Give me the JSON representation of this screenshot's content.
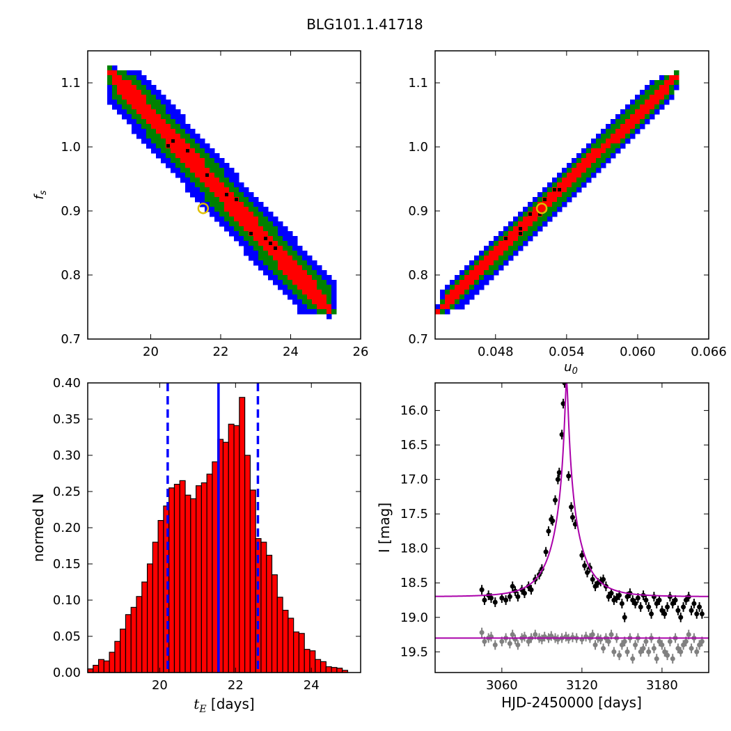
{
  "title": "BLG101.1.41718",
  "panels": {
    "tl": {
      "ylabel": "f_s",
      "yticks": [
        "1.1",
        "1.0",
        "0.9",
        "0.8",
        "0.7"
      ],
      "xticks": [
        "20",
        "22",
        "24",
        "26"
      ]
    },
    "tr": {
      "xlabel": "u_0",
      "yticks": [
        "1.1",
        "1.0",
        "0.9",
        "0.8",
        "0.7"
      ],
      "xticks": [
        "0.048",
        "0.054",
        "0.060",
        "0.066"
      ]
    },
    "bl": {
      "xlabel": "t_E [days]",
      "ylabel": "normed N",
      "yticks": [
        "0.40",
        "0.35",
        "0.30",
        "0.25",
        "0.20",
        "0.15",
        "0.10",
        "0.05",
        "0.00"
      ],
      "xticks": [
        "20",
        "22",
        "24"
      ]
    },
    "br": {
      "xlabel": "HJD-2450000 [days]",
      "ylabel": "I [mag]",
      "yticks": [
        "16.0",
        "16.5",
        "17.0",
        "17.5",
        "18.0",
        "18.5",
        "19.0",
        "19.5"
      ],
      "xticks": [
        "3060",
        "3120",
        "3180"
      ]
    }
  },
  "colors": {
    "level_outer": "#0000ff",
    "level_mid": "#008000",
    "level_inner": "#ff0000",
    "samples": "#000000",
    "best_fit_marker": "#e0c000",
    "hist_bar": "#ff0000",
    "hist_lines": "#0000ff",
    "model": "#aa00aa",
    "data_primary": "#000000",
    "data_secondary": "#808080"
  },
  "chart_data": [
    {
      "type": "heatmap",
      "name": "tE_vs_fs",
      "xlim": [
        18.2,
        26
      ],
      "ylim": [
        0.7,
        1.15
      ],
      "ridge": {
        "x0": 18.8,
        "y0": 1.12,
        "x1": 25.2,
        "y1": 0.74,
        "half_width": [
          0.012,
          0.024,
          0.036
        ]
      },
      "best_fit": {
        "x": 21.5,
        "y": 0.904
      }
    },
    {
      "type": "heatmap",
      "name": "u0_vs_fs",
      "xlim": [
        0.0429,
        0.066
      ],
      "ylim": [
        0.7,
        1.15
      ],
      "ridge": {
        "x0": 0.0431,
        "y0": 0.742,
        "x1": 0.0635,
        "y1": 1.115,
        "half_width": [
          0.008,
          0.015,
          0.022
        ]
      },
      "best_fit": {
        "x": 0.0519,
        "y": 0.904
      }
    },
    {
      "type": "bar",
      "name": "tE_histogram",
      "xlim": [
        18.1,
        25.3
      ],
      "ylim": [
        0,
        0.4
      ],
      "bin_start": 18.1,
      "bin_width": 0.1429,
      "values": [
        0.005,
        0.01,
        0.018,
        0.016,
        0.028,
        0.043,
        0.06,
        0.08,
        0.09,
        0.105,
        0.125,
        0.15,
        0.18,
        0.21,
        0.23,
        0.255,
        0.26,
        0.265,
        0.245,
        0.24,
        0.258,
        0.262,
        0.274,
        0.291,
        0.322,
        0.318,
        0.343,
        0.341,
        0.38,
        0.3,
        0.252,
        0.185,
        0.18,
        0.162,
        0.135,
        0.104,
        0.086,
        0.075,
        0.056,
        0.054,
        0.032,
        0.03,
        0.018,
        0.015,
        0.008,
        0.007,
        0.006,
        0.003
      ],
      "median": 21.55,
      "ci_low": 20.21,
      "ci_high": 22.59
    },
    {
      "type": "scatter",
      "name": "light_curve",
      "xlim": [
        3010,
        3215
      ],
      "ylim": [
        19.8,
        15.6
      ],
      "model_primary": {
        "baseline": 18.7,
        "t0": 3108.5,
        "u0": 0.052,
        "tE": 21.55,
        "fs": 0.904
      },
      "model_secondary": {
        "baseline": 19.3
      },
      "points_primary": [
        [
          3045,
          18.6
        ],
        [
          3047,
          18.75
        ],
        [
          3050,
          18.68
        ],
        [
          3052,
          18.72
        ],
        [
          3055,
          18.78
        ],
        [
          3060,
          18.72
        ],
        [
          3063,
          18.75
        ],
        [
          3066,
          18.7
        ],
        [
          3068,
          18.55
        ],
        [
          3070,
          18.62
        ],
        [
          3072,
          18.7
        ],
        [
          3075,
          18.6
        ],
        [
          3077,
          18.65
        ],
        [
          3080,
          18.55
        ],
        [
          3082,
          18.6
        ],
        [
          3085,
          18.45
        ],
        [
          3088,
          18.38
        ],
        [
          3090,
          18.3
        ],
        [
          3093,
          18.05
        ],
        [
          3095,
          17.75
        ],
        [
          3097,
          17.58
        ],
        [
          3098,
          17.6
        ],
        [
          3100,
          17.3
        ],
        [
          3102,
          17.0
        ],
        [
          3103,
          16.9
        ],
        [
          3105,
          16.35
        ],
        [
          3106,
          15.9
        ],
        [
          3107,
          15.6
        ],
        [
          3110,
          16.95
        ],
        [
          3112,
          17.4
        ],
        [
          3113,
          17.55
        ],
        [
          3115,
          17.65
        ],
        [
          3120,
          18.1
        ],
        [
          3122,
          18.25
        ],
        [
          3124,
          18.35
        ],
        [
          3126,
          18.28
        ],
        [
          3128,
          18.45
        ],
        [
          3130,
          18.55
        ],
        [
          3132,
          18.5
        ],
        [
          3134,
          18.48
        ],
        [
          3136,
          18.45
        ],
        [
          3138,
          18.55
        ],
        [
          3140,
          18.7
        ],
        [
          3142,
          18.65
        ],
        [
          3144,
          18.75
        ],
        [
          3146,
          18.72
        ],
        [
          3148,
          18.68
        ],
        [
          3150,
          18.8
        ],
        [
          3152,
          19.0
        ],
        [
          3154,
          18.7
        ],
        [
          3156,
          18.65
        ],
        [
          3158,
          18.75
        ],
        [
          3160,
          18.8
        ],
        [
          3162,
          18.72
        ],
        [
          3164,
          18.85
        ],
        [
          3166,
          18.68
        ],
        [
          3168,
          18.75
        ],
        [
          3170,
          18.85
        ],
        [
          3172,
          18.95
        ],
        [
          3174,
          18.7
        ],
        [
          3176,
          18.8
        ],
        [
          3178,
          18.75
        ],
        [
          3180,
          18.9
        ],
        [
          3182,
          18.95
        ],
        [
          3184,
          18.85
        ],
        [
          3186,
          18.7
        ],
        [
          3188,
          18.8
        ],
        [
          3190,
          18.75
        ],
        [
          3192,
          18.9
        ],
        [
          3194,
          19.0
        ],
        [
          3196,
          18.85
        ],
        [
          3198,
          18.75
        ],
        [
          3200,
          18.7
        ],
        [
          3202,
          18.9
        ],
        [
          3204,
          18.8
        ],
        [
          3206,
          18.95
        ],
        [
          3208,
          18.85
        ],
        [
          3210,
          18.95
        ]
      ],
      "points_secondary": [
        [
          3045,
          19.22
        ],
        [
          3047,
          19.35
        ],
        [
          3050,
          19.3
        ],
        [
          3052,
          19.28
        ],
        [
          3055,
          19.4
        ],
        [
          3060,
          19.35
        ],
        [
          3063,
          19.3
        ],
        [
          3066,
          19.38
        ],
        [
          3068,
          19.25
        ],
        [
          3070,
          19.32
        ],
        [
          3072,
          19.4
        ],
        [
          3075,
          19.3
        ],
        [
          3077,
          19.28
        ],
        [
          3080,
          19.35
        ],
        [
          3082,
          19.3
        ],
        [
          3085,
          19.25
        ],
        [
          3088,
          19.3
        ],
        [
          3090,
          19.32
        ],
        [
          3092,
          19.28
        ],
        [
          3095,
          19.3
        ],
        [
          3097,
          19.27
        ],
        [
          3100,
          19.3
        ],
        [
          3102,
          19.32
        ],
        [
          3105,
          19.3
        ],
        [
          3108,
          19.28
        ],
        [
          3110,
          19.31
        ],
        [
          3113,
          19.29
        ],
        [
          3116,
          19.3
        ],
        [
          3120,
          19.32
        ],
        [
          3123,
          19.28
        ],
        [
          3126,
          19.3
        ],
        [
          3128,
          19.25
        ],
        [
          3130,
          19.4
        ],
        [
          3132,
          19.3
        ],
        [
          3134,
          19.32
        ],
        [
          3136,
          19.45
        ],
        [
          3138,
          19.3
        ],
        [
          3140,
          19.35
        ],
        [
          3142,
          19.25
        ],
        [
          3144,
          19.5
        ],
        [
          3146,
          19.3
        ],
        [
          3148,
          19.55
        ],
        [
          3150,
          19.4
        ],
        [
          3152,
          19.35
        ],
        [
          3154,
          19.5
        ],
        [
          3156,
          19.3
        ],
        [
          3158,
          19.6
        ],
        [
          3160,
          19.4
        ],
        [
          3162,
          19.3
        ],
        [
          3164,
          19.5
        ],
        [
          3166,
          19.45
        ],
        [
          3168,
          19.35
        ],
        [
          3170,
          19.5
        ],
        [
          3172,
          19.3
        ],
        [
          3174,
          19.45
        ],
        [
          3176,
          19.6
        ],
        [
          3178,
          19.35
        ],
        [
          3180,
          19.4
        ],
        [
          3182,
          19.5
        ],
        [
          3184,
          19.55
        ],
        [
          3186,
          19.35
        ],
        [
          3188,
          19.6
        ],
        [
          3190,
          19.3
        ],
        [
          3192,
          19.45
        ],
        [
          3194,
          19.5
        ],
        [
          3196,
          19.4
        ],
        [
          3198,
          19.35
        ],
        [
          3200,
          19.25
        ],
        [
          3202,
          19.45
        ],
        [
          3204,
          19.3
        ],
        [
          3206,
          19.5
        ],
        [
          3208,
          19.4
        ],
        [
          3210,
          19.35
        ]
      ]
    }
  ]
}
